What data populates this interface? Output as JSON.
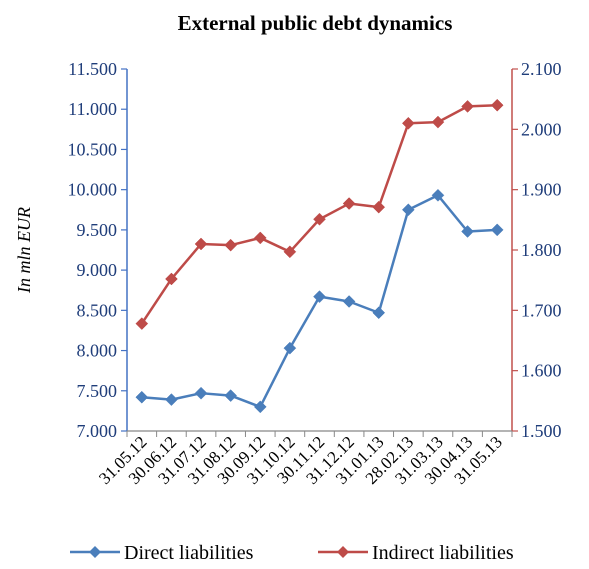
{
  "chart_data": {
    "type": "line",
    "title": "External public debt dynamics",
    "ylabel": "In mln EUR",
    "categories": [
      "31.05.12",
      "30.06.12",
      "31.07.12",
      "31.08.12",
      "30.09.12",
      "31.10.12",
      "30.11.12",
      "31.12.12",
      "31.01.13",
      "28.02.13",
      "31.03.13",
      "30.04.13",
      "31.05.13"
    ],
    "y_left": {
      "lim": [
        7000,
        11500
      ],
      "ticks": [
        7000,
        7500,
        8000,
        8500,
        9000,
        9500,
        10000,
        10500,
        11000,
        11500
      ],
      "tick_labels": [
        "7.000",
        "7.500",
        "8.000",
        "8.500",
        "9.000",
        "9.500",
        "10.000",
        "10.500",
        "11.000",
        "11.500"
      ],
      "color": "#4472C4"
    },
    "y_right": {
      "lim": [
        1500,
        2100
      ],
      "ticks": [
        1500,
        1600,
        1700,
        1800,
        1900,
        2000,
        2100
      ],
      "tick_labels": [
        "1.500",
        "1.600",
        "1.700",
        "1.800",
        "1.900",
        "2.000",
        "2.100"
      ],
      "color": "#C0504D"
    },
    "series": [
      {
        "name": "Direct liabilities",
        "axis": "left",
        "color": "#4A7EBB",
        "marker": "diamond",
        "values": [
          7420,
          7390,
          7470,
          7440,
          7300,
          8030,
          8670,
          8610,
          8470,
          9750,
          9930,
          9480,
          9500
        ]
      },
      {
        "name": "Indirect liabilities",
        "axis": "right",
        "color": "#BE4B48",
        "marker": "diamond",
        "values": [
          1678,
          1752,
          1810,
          1808,
          1820,
          1797,
          1851,
          1877,
          1871,
          2010,
          2012,
          2038,
          2040
        ]
      }
    ],
    "grid": false,
    "legend_position": "bottom"
  }
}
